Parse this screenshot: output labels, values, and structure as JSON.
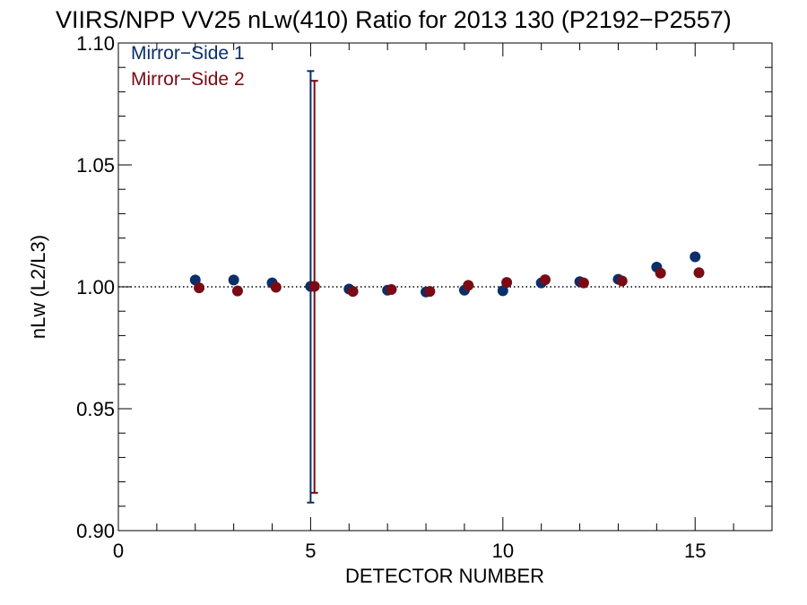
{
  "chart_data": {
    "type": "scatter",
    "title": "VIIRS/NPP VV25 nLw(410) Ratio for 2013 130 (P2192−P2557)",
    "xlabel": "DETECTOR NUMBER",
    "ylabel": "nLw (L2/L3)",
    "xlim": [
      0,
      17
    ],
    "ylim": [
      0.9,
      1.1
    ],
    "x_ticks": [
      0,
      5,
      10,
      15
    ],
    "x_tick_labels": [
      "0",
      "5",
      "10",
      "15"
    ],
    "y_ticks": [
      0.9,
      0.95,
      1.0,
      1.05,
      1.1
    ],
    "y_tick_labels": [
      "0.90",
      "0.95",
      "1.00",
      "1.05",
      "1.10"
    ],
    "reference_line": {
      "y": 1.0,
      "style": "dotted"
    },
    "legend_placement": "top-left",
    "series": [
      {
        "name": "Mirror−Side 1",
        "color": "#0a2f6b",
        "x": [
          2,
          3,
          4,
          5,
          6,
          7,
          8,
          9,
          10,
          11,
          12,
          13,
          14,
          15
        ],
        "values": [
          1.0028,
          1.0028,
          1.0016,
          1.0002,
          0.9991,
          0.9986,
          0.9979,
          0.9986,
          0.9984,
          1.0016,
          1.0021,
          1.0031,
          1.0081,
          1.0123
        ],
        "error_bars": [
          {
            "x": 5,
            "low": 0.9115,
            "high": 1.0885
          }
        ]
      },
      {
        "name": "Mirror−Side 2",
        "color": "#7a0a14",
        "x": [
          2.1,
          3.1,
          4.1,
          5.1,
          6.1,
          7.1,
          8.1,
          9.1,
          10.1,
          11.1,
          12.1,
          13.1,
          14.1,
          15.1
        ],
        "values": [
          0.9996,
          0.9983,
          0.9998,
          1.0002,
          0.9981,
          0.9989,
          0.9981,
          1.0006,
          1.0018,
          1.0029,
          1.0016,
          1.0024,
          1.0056,
          1.0058
        ],
        "error_bars": [
          {
            "x": 5.1,
            "low": 0.9155,
            "high": 1.0845
          }
        ]
      }
    ]
  }
}
